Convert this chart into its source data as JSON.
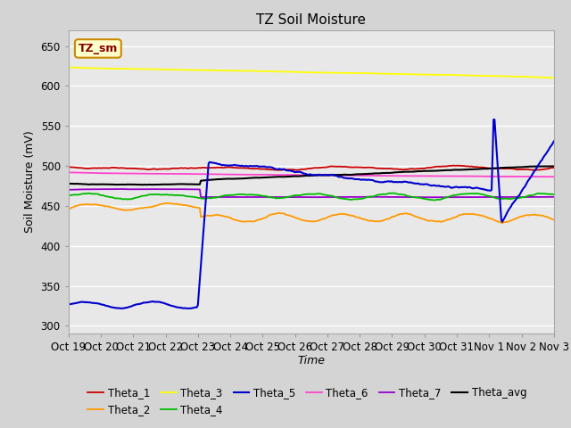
{
  "title": "TZ Soil Moisture",
  "xlabel": "Time",
  "ylabel": "Soil Moisture (mV)",
  "ylim": [
    290,
    670
  ],
  "yticks": [
    300,
    350,
    400,
    450,
    500,
    550,
    600,
    650
  ],
  "x_labels": [
    "Oct 19",
    "Oct 20",
    "Oct 21",
    "Oct 22",
    "Oct 23",
    "Oct 24",
    "Oct 25",
    "Oct 26",
    "Oct 27",
    "Oct 28",
    "Oct 29",
    "Oct 30",
    "Oct 31",
    "Nov 1",
    "Nov 2",
    "Nov 3"
  ],
  "colors": {
    "Theta_1": "#cc0000",
    "Theta_2": "#ff9900",
    "Theta_3": "#ffff00",
    "Theta_4": "#00bb00",
    "Theta_5": "#0000cc",
    "Theta_6": "#ff44cc",
    "Theta_7": "#9900cc",
    "Theta_avg": "#000000"
  },
  "fig_bg": "#d4d4d4",
  "ax_bg": "#e8e8e8",
  "grid_color": "#ffffff",
  "legend_label": "TZ_sm",
  "legend_label_color": "#880000",
  "legend_box_fc": "#ffffcc",
  "legend_box_ec": "#cc8800",
  "figsize": [
    6.4,
    4.8
  ],
  "dpi": 100
}
